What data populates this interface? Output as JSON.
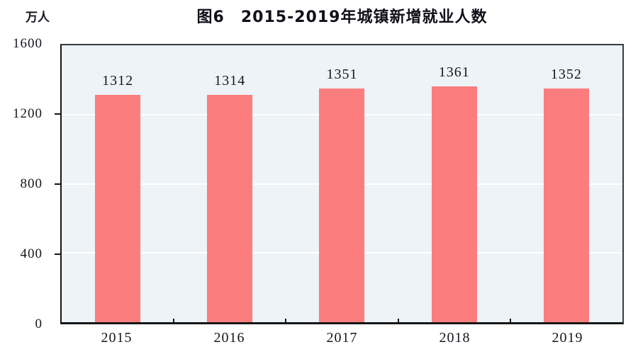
{
  "figure": {
    "title": "图6　2015-2019年城镇新增就业人数",
    "unit_label": "万人"
  },
  "chart_data": {
    "type": "bar",
    "title": "图6　2015-2019年城镇新增就业人数",
    "categories": [
      "2015",
      "2016",
      "2017",
      "2018",
      "2019"
    ],
    "values": [
      1312,
      1314,
      1351,
      1361,
      1352
    ],
    "xlabel": "",
    "ylabel": "万人",
    "ylim": [
      0,
      1600
    ],
    "yticks": [
      0,
      400,
      800,
      1200,
      1600
    ],
    "grid": true,
    "data_labels": true,
    "legend": "none",
    "colors": {
      "bar_fill": "#fb7d7d",
      "plot_background": "#edf3f6",
      "gridline": "#ffffff",
      "axis": "#161616",
      "text": "#16161e"
    }
  }
}
